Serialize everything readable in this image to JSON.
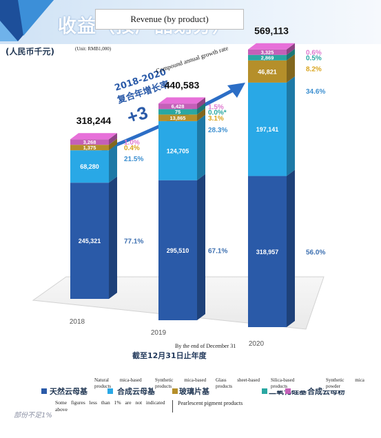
{
  "header": {
    "title_cn": "收益（按产品划分）",
    "title_overlay": "Revenue (by product)",
    "unit_cn": "(人民币千元)",
    "unit_overlay": "(Unit: RMB1,000)"
  },
  "cagr": {
    "label_cn_1": "2018-2020",
    "label_cn_2": "复合年增长率",
    "label_en": "Compound annual growth rate",
    "value_partial": "+3"
  },
  "x_caption": {
    "cn": "截至12月31日止年度",
    "overlay": "By the end of December 31"
  },
  "legend": {
    "items": [
      {
        "key": "natural",
        "cn": "天然云母基",
        "label": "Natural mica-based products"
      },
      {
        "key": "synthetic",
        "cn": "合成云母基",
        "label": "Synthetic mica-based products"
      },
      {
        "key": "glass",
        "cn": "玻璃片基",
        "label": "Glass sheet-based products"
      },
      {
        "key": "silica",
        "cn": "二氧化硅基",
        "label": "Silica-based products"
      },
      {
        "key": "powder",
        "cn": "合成云母粉",
        "label": "Synthetic mica powder"
      }
    ],
    "title": "Pearlescent pigment products"
  },
  "footnote": {
    "text": "Some figures less than 1% are not indicated above",
    "cn": "部份不足1%"
  },
  "colors": {
    "natural": "#2a5aa8",
    "synthetic": "#29a8e6",
    "glass": "#b58f2a",
    "silica": "#2aa7a2",
    "powder": "#c45fb8",
    "pct_synthetic": "#3c8fd0",
    "pct_glass": "#d9a520",
    "pct_silica": "#2aa7a2",
    "pct_powder": "#e07ad0"
  },
  "chart_data": {
    "type": "bar",
    "stacked": true,
    "categories": [
      "2018",
      "2019",
      "2020"
    ],
    "totals": [
      "318,244",
      "440,583",
      "569,113"
    ],
    "series": [
      {
        "key": "natural",
        "values": [
          245321,
          295510,
          318957
        ],
        "labels": [
          "245,321",
          "295,510",
          "318,957"
        ],
        "shares": [
          "77.1%",
          "67.1%",
          "56.0%"
        ]
      },
      {
        "key": "synthetic",
        "values": [
          68280,
          124705,
          197141
        ],
        "labels": [
          "68,280",
          "124,705",
          "197,141"
        ],
        "shares": [
          "21.5%",
          "28.3%",
          "34.6%"
        ]
      },
      {
        "key": "glass",
        "values": [
          1375,
          13865,
          46821
        ],
        "labels": [
          "1,375",
          "13,865",
          "46,821"
        ],
        "shares": [
          "0.4%",
          "3.1%",
          "8.2%"
        ]
      },
      {
        "key": "silica",
        "values": [
          0,
          75,
          2869
        ],
        "labels": [
          "",
          "75",
          "2,869"
        ],
        "shares": [
          "",
          "0.0%*",
          "0.5%"
        ]
      },
      {
        "key": "powder",
        "values": [
          3268,
          6428,
          3325
        ],
        "labels": [
          "3,268",
          "6,428",
          "3,325"
        ],
        "shares": [
          "1.0%",
          "1.5%",
          "0.6%"
        ]
      }
    ],
    "ylim": [
      0,
      600000
    ]
  }
}
